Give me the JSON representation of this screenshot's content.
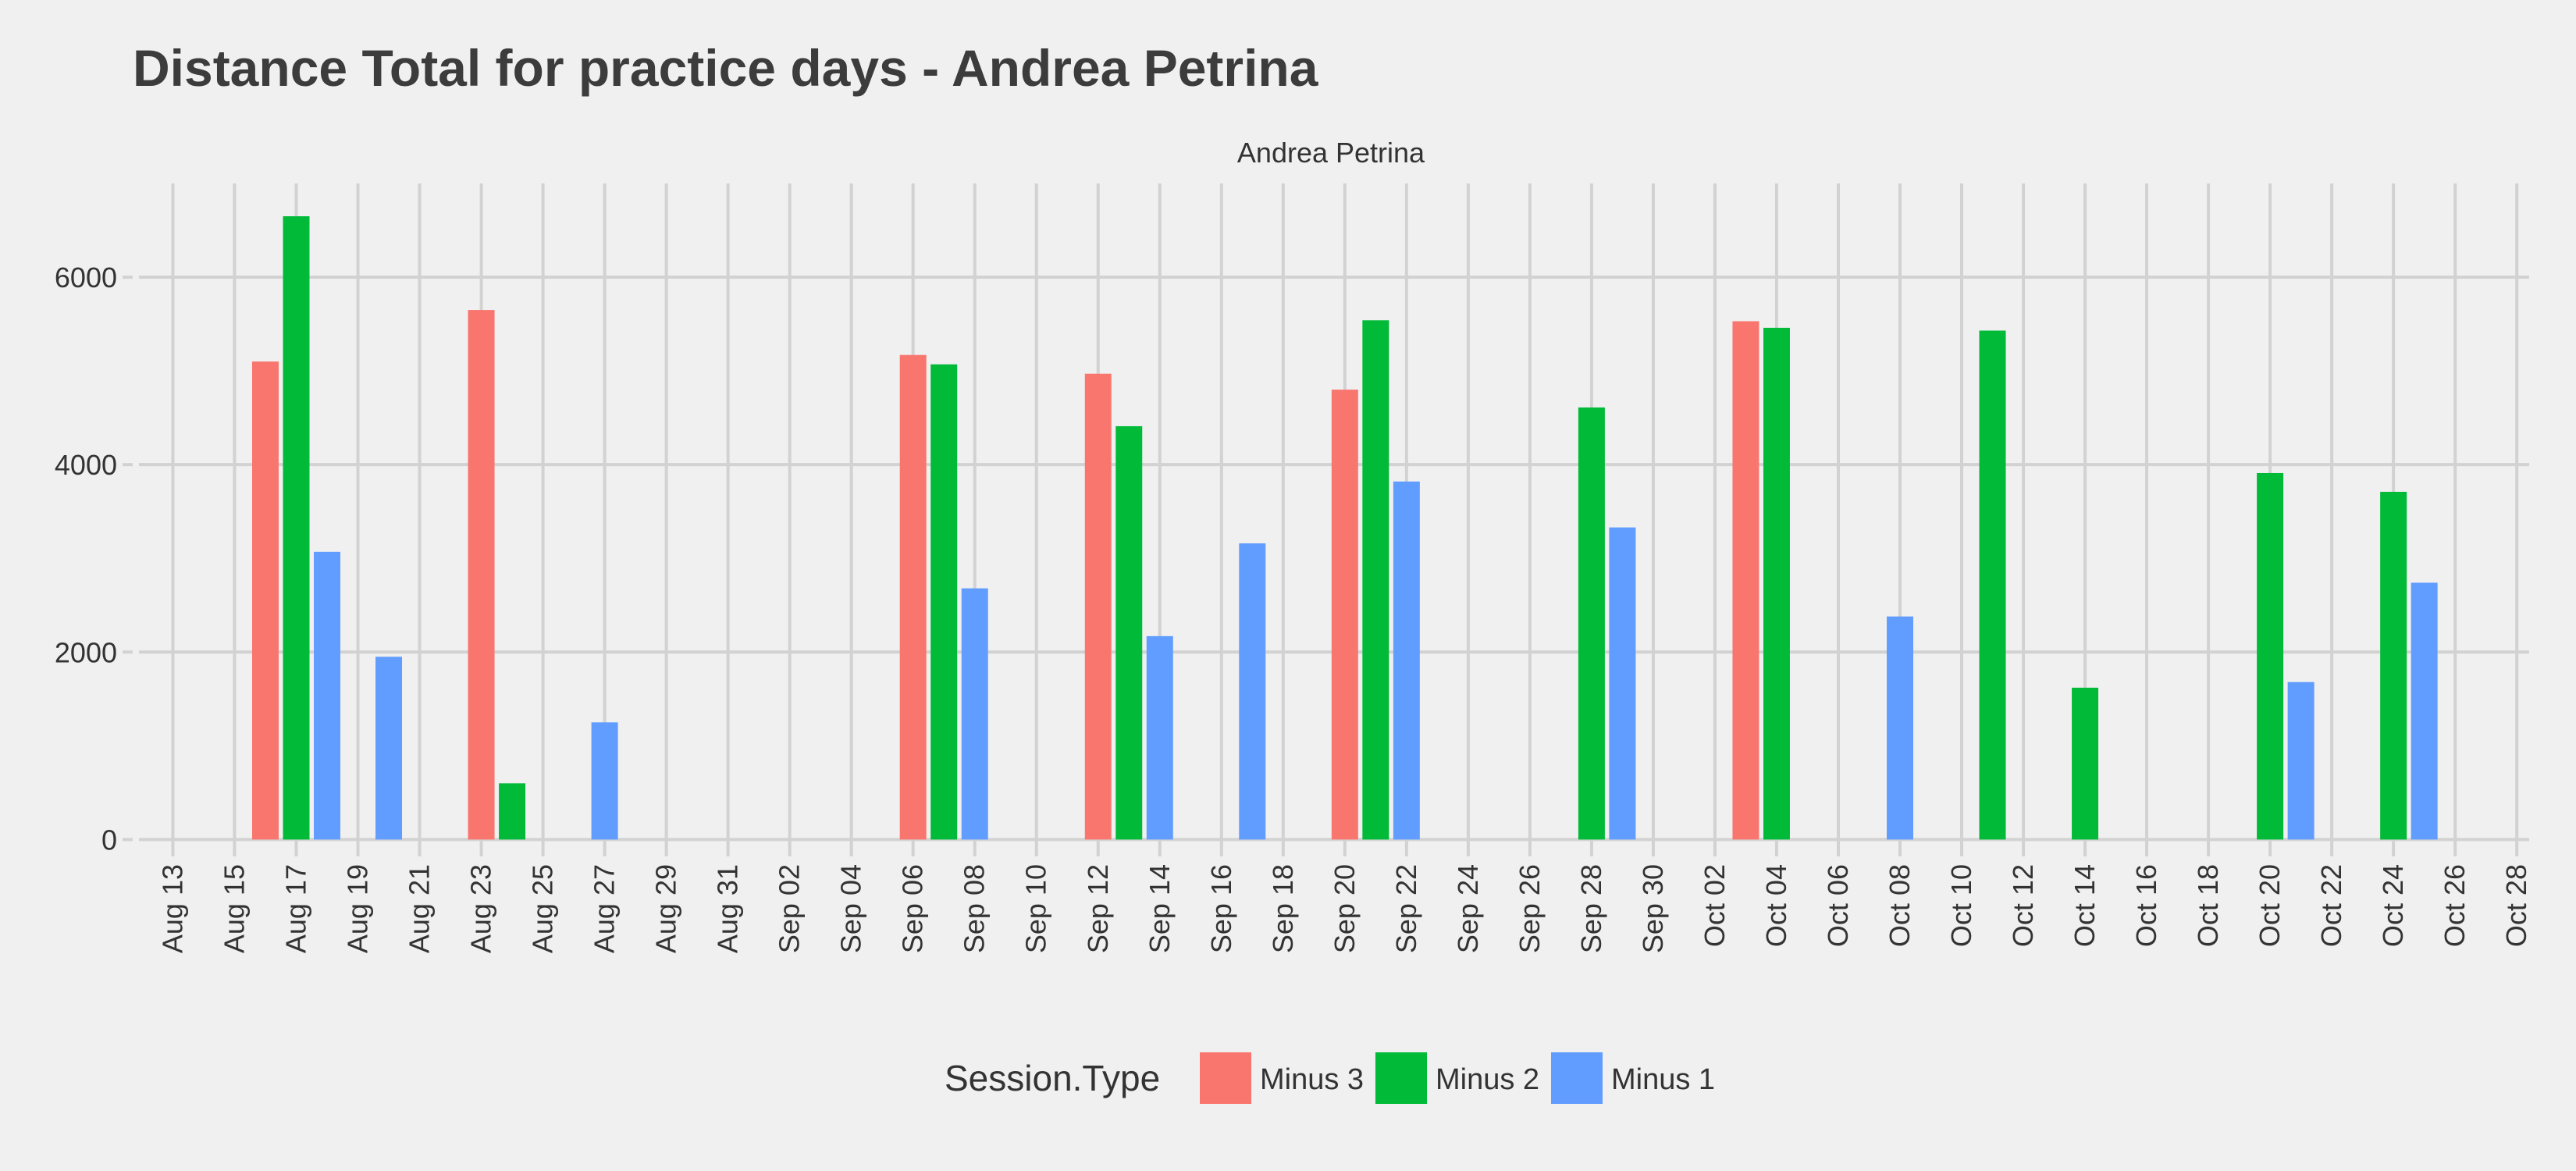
{
  "chart_data": {
    "type": "bar",
    "title": "Distance Total for practice days -  Andrea Petrina",
    "facet_label": "Andrea Petrina",
    "xlabel": "",
    "ylabel": "",
    "ylim": [
      0,
      7000
    ],
    "yticks": [
      0,
      2000,
      4000,
      6000
    ],
    "ytick_labels": [
      "0",
      "2000",
      "4000",
      "6000"
    ],
    "x_start_day": 0,
    "x_end_day": 76,
    "xtick_days": [
      0,
      2,
      4,
      6,
      8,
      10,
      12,
      14,
      16,
      18,
      20,
      22,
      24,
      26,
      28,
      30,
      32,
      34,
      36,
      38,
      40,
      42,
      44,
      46,
      48,
      50,
      52,
      54,
      56,
      58,
      60,
      62,
      64,
      66,
      68,
      70,
      72,
      74,
      76
    ],
    "xtick_labels": [
      "Aug 13",
      "Aug 15",
      "Aug 17",
      "Aug 19",
      "Aug 21",
      "Aug 23",
      "Aug 25",
      "Aug 27",
      "Aug 29",
      "Aug 31",
      "Sep 02",
      "Sep 04",
      "Sep 06",
      "Sep 08",
      "Sep 10",
      "Sep 12",
      "Sep 14",
      "Sep 16",
      "Sep 18",
      "Sep 20",
      "Sep 22",
      "Sep 24",
      "Sep 26",
      "Sep 28",
      "Sep 30",
      "Oct 02",
      "Oct 04",
      "Oct 06",
      "Oct 08",
      "Oct 10",
      "Oct 12",
      "Oct 14",
      "Oct 16",
      "Oct 18",
      "Oct 20",
      "Oct 22",
      "Oct 24",
      "Oct 26",
      "Oct 28"
    ],
    "legend": {
      "title": "Session.Type",
      "position": "bottom"
    },
    "series": [
      {
        "name": "Minus 3",
        "color": "#F8766D",
        "points": [
          {
            "date": "Aug 16",
            "day": 3,
            "value": 5100
          },
          {
            "date": "Aug 23",
            "day": 10,
            "value": 5650
          },
          {
            "date": "Sep 06",
            "day": 24,
            "value": 5170
          },
          {
            "date": "Sep 12",
            "day": 30,
            "value": 4970
          },
          {
            "date": "Sep 20",
            "day": 38,
            "value": 4800
          },
          {
            "date": "Oct 03",
            "day": 51,
            "value": 5530
          }
        ]
      },
      {
        "name": "Minus 2",
        "color": "#00BA38",
        "points": [
          {
            "date": "Aug 17",
            "day": 4,
            "value": 6650
          },
          {
            "date": "Aug 24",
            "day": 11,
            "value": 600
          },
          {
            "date": "Sep 07",
            "day": 25,
            "value": 5070
          },
          {
            "date": "Sep 13",
            "day": 31,
            "value": 4410
          },
          {
            "date": "Sep 21",
            "day": 39,
            "value": 5540
          },
          {
            "date": "Sep 28",
            "day": 46,
            "value": 4610
          },
          {
            "date": "Oct 04",
            "day": 52,
            "value": 5460
          },
          {
            "date": "Oct 11",
            "day": 59,
            "value": 5430
          },
          {
            "date": "Oct 14",
            "day": 62,
            "value": 1620
          },
          {
            "date": "Oct 20",
            "day": 68,
            "value": 3910
          },
          {
            "date": "Oct 24",
            "day": 72,
            "value": 3710
          }
        ]
      },
      {
        "name": "Minus 1",
        "color": "#619CFF",
        "points": [
          {
            "date": "Aug 18",
            "day": 5,
            "value": 3070
          },
          {
            "date": "Aug 20",
            "day": 7,
            "value": 1950
          },
          {
            "date": "Aug 27",
            "day": 14,
            "value": 1250
          },
          {
            "date": "Sep 08",
            "day": 26,
            "value": 2680
          },
          {
            "date": "Sep 14",
            "day": 32,
            "value": 2170
          },
          {
            "date": "Sep 17",
            "day": 35,
            "value": 3160
          },
          {
            "date": "Sep 22",
            "day": 40,
            "value": 3820
          },
          {
            "date": "Sep 29",
            "day": 47,
            "value": 3330
          },
          {
            "date": "Oct 08",
            "day": 56,
            "value": 2380
          },
          {
            "date": "Oct 21",
            "day": 69,
            "value": 1680
          },
          {
            "date": "Oct 25",
            "day": 73,
            "value": 2740
          }
        ]
      }
    ]
  }
}
